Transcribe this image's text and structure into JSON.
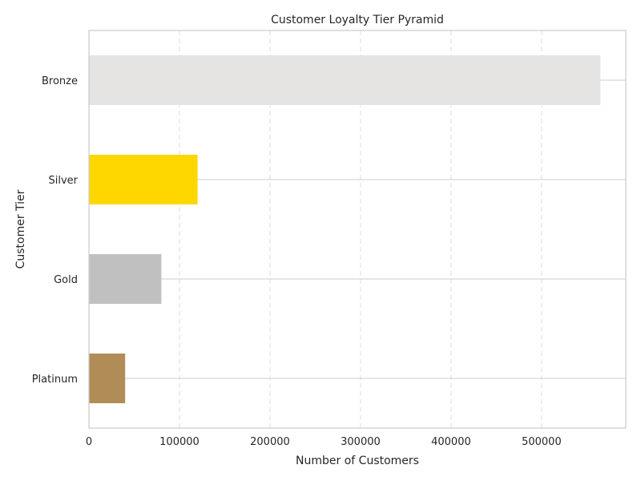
{
  "chart_data": {
    "type": "bar",
    "orientation": "horizontal",
    "title": "Customer Loyalty Tier Pyramid",
    "xlabel": "Number of Customers",
    "ylabel": "Customer Tier",
    "categories": [
      "Platinum",
      "Gold",
      "Silver",
      "Bronze"
    ],
    "values": [
      40000,
      80000,
      120000,
      565000
    ],
    "colors": [
      "#b08d57",
      "#c0c0c0",
      "#ffd700",
      "#e5e4e2"
    ],
    "xlim": [
      0,
      593000
    ],
    "xticks": [
      0,
      100000,
      200000,
      300000,
      400000,
      500000
    ],
    "xtick_labels": [
      "0",
      "100000",
      "200000",
      "300000",
      "400000",
      "500000"
    ],
    "grid": "x-dashed",
    "legend": "none"
  }
}
